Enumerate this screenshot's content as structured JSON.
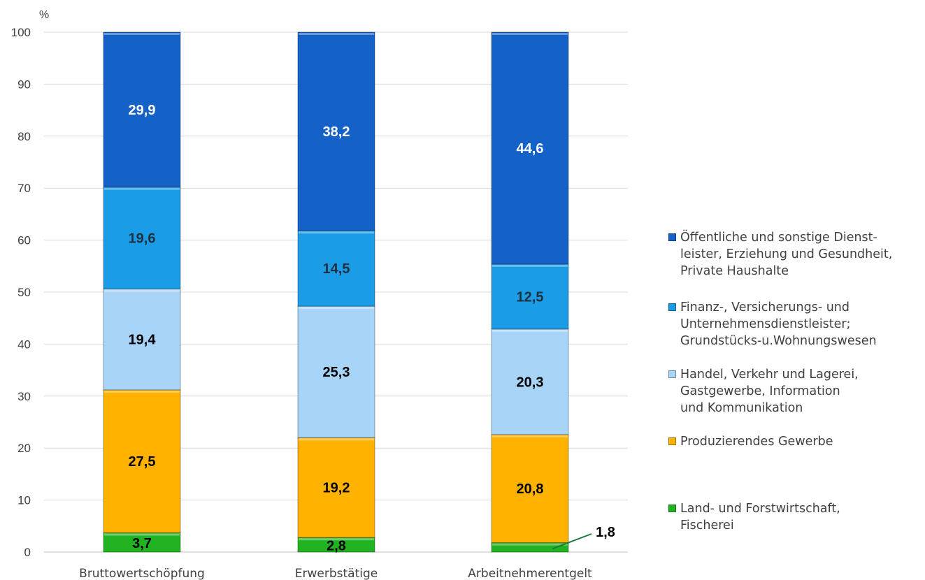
{
  "chart_data": {
    "type": "bar",
    "stacked": true,
    "unit_label": "%",
    "ylim": [
      0,
      100
    ],
    "yticks": [
      0,
      10,
      20,
      30,
      40,
      50,
      60,
      70,
      80,
      90,
      100
    ],
    "grid": true,
    "legend_position": "right",
    "categories": [
      "Bruttowertschöpfung",
      "Erwerbstätige",
      "Arbeitnehmerentgelt"
    ],
    "series": [
      {
        "name": "Land- und Forstwirtschaft,\nFischerei",
        "values": [
          3.7,
          2.8,
          1.8
        ],
        "labels": [
          "3,7",
          "2,8",
          "1,8"
        ],
        "color": "#22b322",
        "label_color": "#000000"
      },
      {
        "name": "Produzierendes Gewerbe",
        "values": [
          27.5,
          19.2,
          20.8
        ],
        "labels": [
          "27,5",
          "19,2",
          "20,8"
        ],
        "color": "#ffb300",
        "label_color": "#000000"
      },
      {
        "name": "Handel, Verkehr und Lagerei,\nGastgewerbe, Information\nund Kommunikation",
        "values": [
          19.4,
          25.3,
          20.3
        ],
        "labels": [
          "19,4",
          "25,3",
          "20,3"
        ],
        "color": "#a8d4f7",
        "label_color": "#000000"
      },
      {
        "name": "Finanz-, Versicherungs- und\nUnternehmensdienstleister;\nGrundstücks-u.Wohnungswesen",
        "values": [
          19.6,
          14.5,
          12.5
        ],
        "labels": [
          "19,6",
          "14,5",
          "12,5"
        ],
        "color": "#1a9ce6",
        "label_color": "#1f2f3f"
      },
      {
        "name": "Öffentliche und sonstige  Dienst-\nleister, Erziehung und Gesundheit,\nPrivate Haushalte",
        "values": [
          29.9,
          38.2,
          44.6
        ],
        "labels": [
          "29,9",
          "38,2",
          "44,6"
        ],
        "color": "#1462c7",
        "label_color": "#ffffff"
      }
    ]
  }
}
